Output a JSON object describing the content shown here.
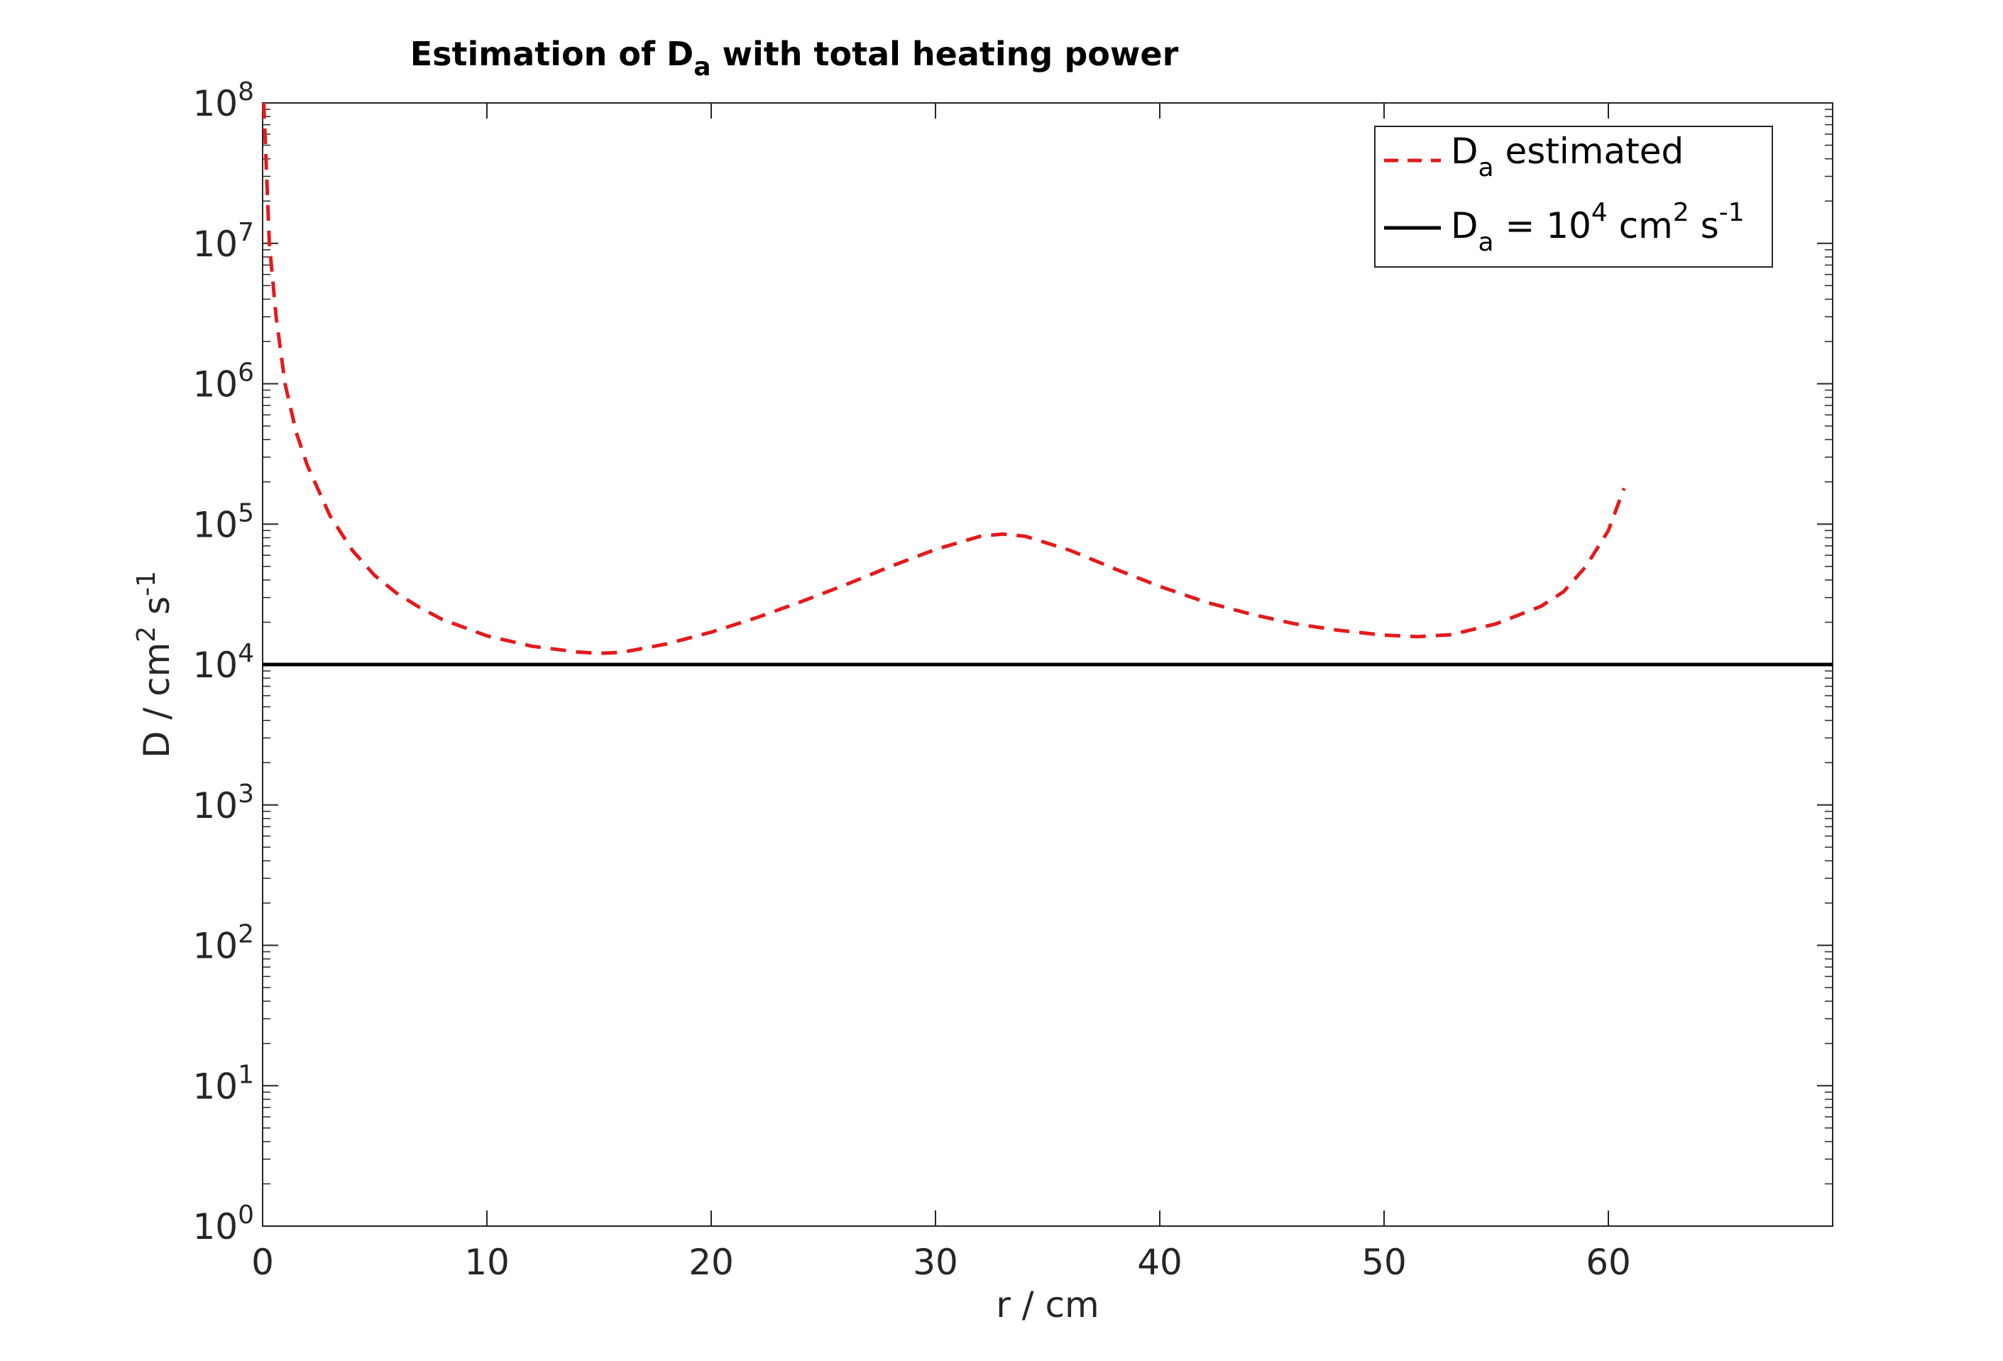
{
  "chart_data": {
    "type": "line",
    "title": {
      "main": "Estimation of D",
      "sub": "a",
      "rest": " with total heating power"
    },
    "xlabel": "r / cm",
    "ylabel": {
      "main": "D / cm",
      "sup1": "2",
      "mid": " s",
      "sup2": "-1"
    },
    "xlim": [
      0,
      70
    ],
    "ylim": [
      1,
      100000000
    ],
    "yscale": "log",
    "xticks": [
      0,
      10,
      20,
      30,
      40,
      50,
      60
    ],
    "yticks": [
      {
        "base": "10",
        "exp": "0",
        "value": 1
      },
      {
        "base": "10",
        "exp": "1",
        "value": 10
      },
      {
        "base": "10",
        "exp": "2",
        "value": 100
      },
      {
        "base": "10",
        "exp": "3",
        "value": 1000
      },
      {
        "base": "10",
        "exp": "4",
        "value": 10000
      },
      {
        "base": "10",
        "exp": "5",
        "value": 100000
      },
      {
        "base": "10",
        "exp": "6",
        "value": 1000000
      },
      {
        "base": "10",
        "exp": "7",
        "value": 10000000
      },
      {
        "base": "10",
        "exp": "8",
        "value": 100000000
      }
    ],
    "grid": false,
    "legend_position": "top-right",
    "series": [
      {
        "name": {
          "main": "D",
          "sub": "a",
          "rest": " estimated"
        },
        "color": "#e41a1c",
        "style": "dashed",
        "x": [
          0.05,
          0.3,
          0.6,
          1,
          1.5,
          2,
          3,
          4,
          5,
          6,
          7,
          8,
          10,
          12,
          14,
          15,
          16,
          18,
          20,
          22,
          24,
          26,
          28,
          30,
          32,
          33,
          34,
          36,
          38,
          40,
          42,
          44,
          46,
          48,
          50,
          51.5,
          53,
          55,
          57,
          58,
          59,
          60,
          60.7
        ],
        "y": [
          100000000,
          10000000,
          3000000,
          1000000,
          450000,
          260000,
          115000,
          65000,
          43000,
          32000,
          25500,
          21000,
          16000,
          13500,
          12300,
          12000,
          12200,
          14000,
          17000,
          21500,
          28000,
          37000,
          50000,
          66000,
          82000,
          85000,
          82000,
          65000,
          48000,
          36000,
          28000,
          23000,
          19500,
          17500,
          16200,
          15800,
          16300,
          19500,
          26000,
          33000,
          50000,
          90000,
          180000
        ]
      },
      {
        "name": {
          "main": "D",
          "sub": "a",
          "eq": " = 10",
          "sup1": "4",
          "unit": " cm",
          "sup2": "2",
          "s": " s",
          "sup3": "-1"
        },
        "color": "#000000",
        "style": "solid",
        "x": [
          0,
          70
        ],
        "y": [
          10000,
          10000
        ]
      }
    ]
  }
}
